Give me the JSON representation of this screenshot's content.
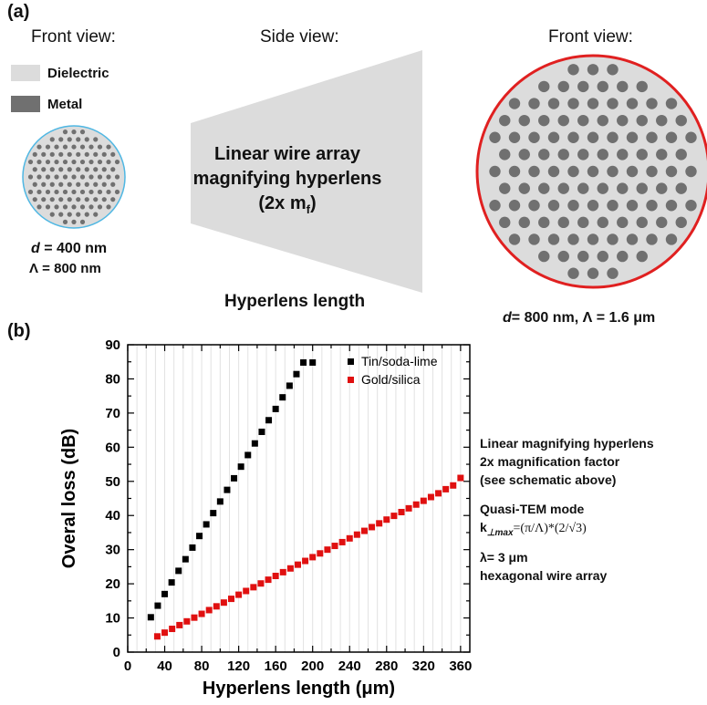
{
  "panel_a": {
    "label": "(a)",
    "left": {
      "title": "Front view:",
      "legend_dielectric": "Dielectric",
      "legend_metal": "Metal",
      "d_symbol": "d",
      "d_value": " = 400 nm",
      "lambda_line": "Λ = 800 nm"
    },
    "middle": {
      "title": "Side view:",
      "lens_line1": "Linear wire array",
      "lens_line2": "magnifying hyperlens",
      "lens_line3_pre": "(2x m",
      "lens_line3_sub": "f",
      "lens_line3_post": ")",
      "length_label": "Hyperlens length"
    },
    "right": {
      "title": "Front view:",
      "d_symbol": "d",
      "dims_rest": "= 800 nm, Λ = 1.6 μm"
    },
    "colors": {
      "dielectric": "#dcdcdc",
      "metal": "#707070",
      "small_circle_border": "#4fb7e3",
      "large_circle_border": "#e02020",
      "lens_fill": "#dcdcdc"
    }
  },
  "panel_b": {
    "label": "(b)",
    "notes": {
      "line1": "Linear magnifying hyperlens",
      "line2": "2x magnification factor",
      "line3": "(see schematic above)",
      "line4": "Quasi-TEM mode",
      "line5_k": "k",
      "line5_sub": "⊥max",
      "line5_rest": "=(π/Λ)*(2/√3)",
      "line6": "λ= 3 μm",
      "line7": "hexagonal wire array"
    }
  },
  "chart_data": {
    "type": "scatter",
    "xlabel": "Hyperlens length (μm)",
    "ylabel": "Overal loss  (dB)",
    "xlim": [
      0,
      370
    ],
    "ylim": [
      0,
      90
    ],
    "xticks": [
      0,
      40,
      80,
      120,
      160,
      200,
      240,
      280,
      320,
      360
    ],
    "yticks": [
      0,
      10,
      20,
      30,
      40,
      50,
      60,
      70,
      80,
      90
    ],
    "grid": "vertical",
    "legend_position": "top",
    "series": [
      {
        "name": "Tin/soda-lime",
        "color": "#000000",
        "marker": "square",
        "x": [
          25,
          32.5,
          40,
          47.5,
          55,
          62.5,
          70,
          77.5,
          85,
          92.5,
          100,
          107.5,
          115,
          122.5,
          130,
          137.5,
          145,
          152.5,
          160,
          167.5,
          175,
          182.5,
          190,
          200
        ],
        "y": [
          10.2,
          13.6,
          17.0,
          20.4,
          23.8,
          27.2,
          30.6,
          34.0,
          37.4,
          40.7,
          44.1,
          47.5,
          50.9,
          54.3,
          57.7,
          61.1,
          64.5,
          67.9,
          71.2,
          74.6,
          78.0,
          81.4,
          84.8,
          84.8
        ]
      },
      {
        "name": "Gold/silica",
        "color": "#e01010",
        "marker": "square",
        "x": [
          32,
          40,
          48,
          56,
          64,
          72,
          80,
          88,
          96,
          104,
          112,
          120,
          128,
          136,
          144,
          152,
          160,
          168,
          176,
          184,
          192,
          200,
          208,
          216,
          224,
          232,
          240,
          248,
          256,
          264,
          272,
          280,
          288,
          296,
          304,
          312,
          320,
          328,
          336,
          344,
          352,
          360
        ],
        "y": [
          4.6,
          5.7,
          6.8,
          7.9,
          9.0,
          10.1,
          11.2,
          12.3,
          13.4,
          14.5,
          15.6,
          16.8,
          17.9,
          19.0,
          20.1,
          21.2,
          22.3,
          23.4,
          24.5,
          25.6,
          26.7,
          27.8,
          28.9,
          30.0,
          31.1,
          32.2,
          33.3,
          34.4,
          35.5,
          36.6,
          37.7,
          38.8,
          39.9,
          41.0,
          42.1,
          43.2,
          44.3,
          45.4,
          46.5,
          47.7,
          48.8,
          51.0
        ]
      }
    ]
  }
}
